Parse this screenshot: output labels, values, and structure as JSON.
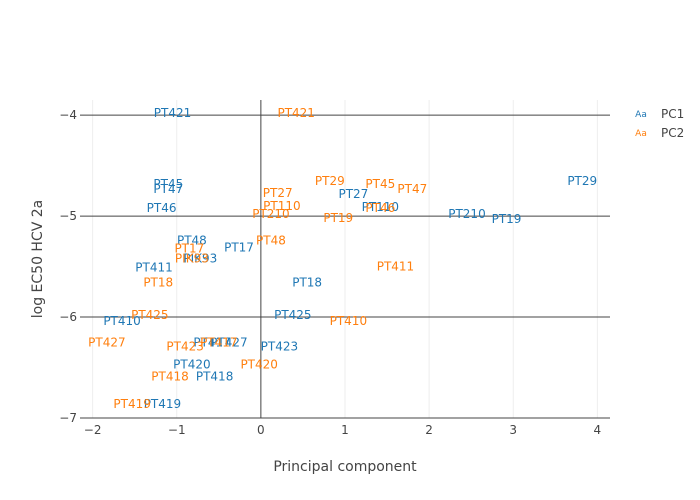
{
  "chart_data": {
    "type": "scatter",
    "mode": "text",
    "xlabel": "Principal component",
    "ylabel": "log EC50 HCV 2a",
    "xlim": [
      -2.15,
      4.15
    ],
    "ylim": [
      -7.0,
      -3.85
    ],
    "x_ticks": [
      {
        "value": -2,
        "label": "−2"
      },
      {
        "value": -1,
        "label": "−1"
      },
      {
        "value": 0,
        "label": "0"
      },
      {
        "value": 1,
        "label": "1"
      },
      {
        "value": 2,
        "label": "2"
      },
      {
        "value": 3,
        "label": "3"
      },
      {
        "value": 4,
        "label": "4"
      }
    ],
    "y_ticks": [
      {
        "value": -4,
        "label": "−4"
      },
      {
        "value": -5,
        "label": "−5"
      },
      {
        "value": -6,
        "label": "−6"
      },
      {
        "value": -7,
        "label": "−7"
      }
    ],
    "grid": true,
    "legend_position": "top-right",
    "legend_glyph": "Aa",
    "series": [
      {
        "name": "PC1",
        "color": "#1f77b4",
        "points": [
          {
            "label": "PT421",
            "x": -1.05,
            "y": -3.98
          },
          {
            "label": "PT45",
            "x": -1.1,
            "y": -4.68
          },
          {
            "label": "PT47",
            "x": -1.1,
            "y": -4.73
          },
          {
            "label": "PT46",
            "x": -1.18,
            "y": -4.92
          },
          {
            "label": "PT48",
            "x": -0.82,
            "y": -5.24
          },
          {
            "label": "PT17",
            "x": -0.26,
            "y": -5.31
          },
          {
            "label": "PIK93",
            "x": -0.72,
            "y": -5.42
          },
          {
            "label": "PT411",
            "x": -1.27,
            "y": -5.51
          },
          {
            "label": "PT18",
            "x": 0.55,
            "y": -5.66
          },
          {
            "label": "PT410",
            "x": -1.65,
            "y": -6.04
          },
          {
            "label": "PT425",
            "x": 0.38,
            "y": -5.98
          },
          {
            "label": "PT417",
            "x": -0.58,
            "y": -6.25
          },
          {
            "label": "PT427",
            "x": -0.38,
            "y": -6.25
          },
          {
            "label": "PT423",
            "x": 0.22,
            "y": -6.29
          },
          {
            "label": "PT420",
            "x": -0.82,
            "y": -6.47
          },
          {
            "label": "PT418",
            "x": -0.55,
            "y": -6.59
          },
          {
            "label": "PT419",
            "x": -1.17,
            "y": -6.86
          },
          {
            "label": "PT27",
            "x": 1.1,
            "y": -4.78
          },
          {
            "label": "PT110",
            "x": 1.42,
            "y": -4.91
          },
          {
            "label": "PT210",
            "x": 2.45,
            "y": -4.98
          },
          {
            "label": "PT19",
            "x": 2.92,
            "y": -5.03
          },
          {
            "label": "PT29",
            "x": 3.82,
            "y": -4.65
          }
        ]
      },
      {
        "name": "PC2",
        "color": "#ff7f0e",
        "points": [
          {
            "label": "PT421",
            "x": 0.42,
            "y": -3.98
          },
          {
            "label": "PT29",
            "x": 0.82,
            "y": -4.65
          },
          {
            "label": "PT45",
            "x": 1.42,
            "y": -4.68
          },
          {
            "label": "PT47",
            "x": 1.8,
            "y": -4.73
          },
          {
            "label": "PT27",
            "x": 0.2,
            "y": -4.77
          },
          {
            "label": "PT110",
            "x": 0.25,
            "y": -4.9
          },
          {
            "label": "PT46",
            "x": 1.42,
            "y": -4.92
          },
          {
            "label": "PT210",
            "x": 0.12,
            "y": -4.98
          },
          {
            "label": "PT19",
            "x": 0.92,
            "y": -5.02
          },
          {
            "label": "PT48",
            "x": 0.12,
            "y": -5.24
          },
          {
            "label": "PT17",
            "x": -0.85,
            "y": -5.32
          },
          {
            "label": "PIK93",
            "x": -0.82,
            "y": -5.42
          },
          {
            "label": "PT411",
            "x": 1.6,
            "y": -5.5
          },
          {
            "label": "PT18",
            "x": -1.22,
            "y": -5.66
          },
          {
            "label": "PT425",
            "x": -1.32,
            "y": -5.98
          },
          {
            "label": "PT410",
            "x": 1.04,
            "y": -6.04
          },
          {
            "label": "PT427",
            "x": -1.83,
            "y": -6.25
          },
          {
            "label": "PT417",
            "x": -0.5,
            "y": -6.25
          },
          {
            "label": "PT423",
            "x": -0.9,
            "y": -6.29
          },
          {
            "label": "PT420",
            "x": -0.02,
            "y": -6.47
          },
          {
            "label": "PT418",
            "x": -1.08,
            "y": -6.59
          },
          {
            "label": "PT419",
            "x": -1.53,
            "y": -6.86
          }
        ]
      }
    ]
  }
}
